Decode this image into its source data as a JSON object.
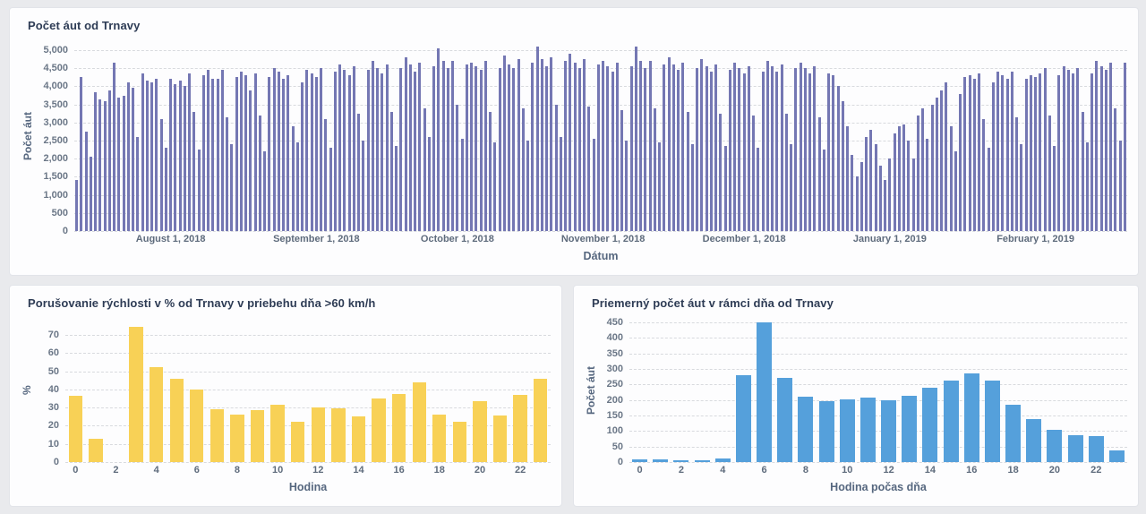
{
  "chart_data": [
    {
      "type": "bar",
      "title": "Počet áut od Trnavy",
      "xlabel": "Dátum",
      "ylabel": "Počet áut",
      "bar_color": "#7477b3",
      "bar_frac": 0.58,
      "grid": "dashed-horizontal",
      "legend": "none",
      "ylim": [
        0,
        5250
      ],
      "yticks": [
        0,
        500,
        1000,
        1500,
        2000,
        2500,
        3000,
        3500,
        4000,
        4500,
        5000
      ],
      "ytick_labels": [
        "0",
        "500",
        "1,000",
        "1,500",
        "2,000",
        "2,500",
        "3,000",
        "3,500",
        "4,000",
        "4,500",
        "5,000"
      ],
      "x_range_note": "daily values, 2018-07-12 to 2019-02-20",
      "xticks": [
        {
          "i": 20,
          "label": "August 1, 2018"
        },
        {
          "i": 51,
          "label": "September 1, 2018"
        },
        {
          "i": 81,
          "label": "October 1, 2018"
        },
        {
          "i": 112,
          "label": "November 1, 2018"
        },
        {
          "i": 142,
          "label": "December 1, 2018"
        },
        {
          "i": 173,
          "label": "January 1, 2019"
        },
        {
          "i": 204,
          "label": "February 1, 2019"
        }
      ],
      "values": [
        1400,
        4250,
        2750,
        2050,
        3850,
        3650,
        3600,
        3900,
        4650,
        3700,
        3750,
        4100,
        3950,
        2600,
        4350,
        4150,
        4100,
        4200,
        3100,
        2300,
        4200,
        4050,
        4150,
        4000,
        4350,
        3300,
        2250,
        4300,
        4450,
        4200,
        4200,
        4450,
        3150,
        2400,
        4250,
        4400,
        4300,
        3900,
        4350,
        3200,
        2200,
        4250,
        4500,
        4400,
        4200,
        4300,
        2900,
        2450,
        4100,
        4450,
        4350,
        4250,
        4500,
        3100,
        2300,
        4400,
        4600,
        4450,
        4300,
        4550,
        3250,
        2500,
        4450,
        4700,
        4500,
        4350,
        4600,
        3300,
        2350,
        4500,
        4800,
        4600,
        4400,
        4650,
        3400,
        2600,
        4550,
        5050,
        4700,
        4500,
        4700,
        3500,
        2550,
        4600,
        4650,
        4550,
        4450,
        4700,
        3300,
        2450,
        4500,
        4850,
        4600,
        4500,
        4750,
        3400,
        2500,
        4650,
        5100,
        4750,
        4550,
        4800,
        3500,
        2600,
        4700,
        4900,
        4650,
        4500,
        4750,
        3450,
        2550,
        4600,
        4700,
        4550,
        4400,
        4650,
        3350,
        2500,
        4550,
        5100,
        4700,
        4500,
        4700,
        3400,
        2450,
        4600,
        4800,
        4600,
        4450,
        4650,
        3300,
        2400,
        4500,
        4750,
        4550,
        4400,
        4600,
        3250,
        2350,
        4450,
        4650,
        4500,
        4350,
        4550,
        3200,
        2300,
        4400,
        4700,
        4550,
        4400,
        4600,
        3250,
        2400,
        4500,
        4650,
        4500,
        4350,
        4550,
        3150,
        2250,
        4350,
        4300,
        4000,
        3600,
        2900,
        2100,
        1500,
        1900,
        2600,
        2800,
        2400,
        1800,
        1400,
        2000,
        2700,
        2900,
        2950,
        2500,
        2000,
        3200,
        3400,
        2550,
        3500,
        3700,
        3900,
        4100,
        2900,
        2200,
        3800,
        4250,
        4300,
        4200,
        4350,
        3100,
        2300,
        4100,
        4400,
        4300,
        4200,
        4400,
        3150,
        2400,
        4200,
        4300,
        4250,
        4350,
        4500,
        3200,
        2350,
        4300,
        4550,
        4450,
        4350,
        4500,
        3300,
        2450,
        4350,
        4700,
        4550,
        4450,
        4650,
        3400,
        2500,
        4650
      ]
    },
    {
      "type": "bar",
      "title": "Porušovanie rýchlosti v % od Trnavy v priebehu dňa >60 km/h",
      "xlabel": "Hodina",
      "ylabel": "%",
      "bar_color": "#f8d156",
      "bar_frac": 0.68,
      "grid": "dashed-horizontal",
      "legend": "none",
      "ylim": [
        0,
        79
      ],
      "yticks": [
        0,
        10,
        20,
        30,
        40,
        50,
        60,
        70
      ],
      "ytick_labels": [
        "0",
        "10",
        "20",
        "30",
        "40",
        "50",
        "60",
        "70"
      ],
      "categories": [
        0,
        1,
        2,
        3,
        4,
        5,
        6,
        7,
        8,
        9,
        10,
        11,
        12,
        13,
        14,
        15,
        16,
        17,
        18,
        19,
        20,
        21,
        22,
        23
      ],
      "xticks": [
        {
          "i": 0,
          "label": "0"
        },
        {
          "i": 2,
          "label": "2"
        },
        {
          "i": 4,
          "label": "4"
        },
        {
          "i": 6,
          "label": "6"
        },
        {
          "i": 8,
          "label": "8"
        },
        {
          "i": 10,
          "label": "10"
        },
        {
          "i": 12,
          "label": "12"
        },
        {
          "i": 14,
          "label": "14"
        },
        {
          "i": 16,
          "label": "16"
        },
        {
          "i": 18,
          "label": "18"
        },
        {
          "i": 20,
          "label": "20"
        },
        {
          "i": 22,
          "label": "22"
        }
      ],
      "values": [
        36.5,
        13,
        0,
        74.5,
        52.5,
        46,
        40,
        29,
        26,
        28.5,
        31.5,
        22,
        30,
        29.5,
        25,
        35,
        37.5,
        44,
        26,
        22,
        33.5,
        25.5,
        37,
        46
      ]
    },
    {
      "type": "bar",
      "title": "Priemerný počet áut v rámci dňa od Trnavy",
      "xlabel": "Hodina počas dňa",
      "ylabel": "Počet áut",
      "bar_color": "#55a0db",
      "bar_frac": 0.74,
      "grid": "dashed-horizontal",
      "legend": "none",
      "ylim": [
        0,
        462
      ],
      "yticks": [
        0,
        50,
        100,
        150,
        200,
        250,
        300,
        350,
        400,
        450
      ],
      "ytick_labels": [
        "0",
        "50",
        "100",
        "150",
        "200",
        "250",
        "300",
        "350",
        "400",
        "450"
      ],
      "categories": [
        0,
        1,
        2,
        3,
        4,
        5,
        6,
        7,
        8,
        9,
        10,
        11,
        12,
        13,
        14,
        15,
        16,
        17,
        18,
        19,
        20,
        21,
        22,
        23
      ],
      "xticks": [
        {
          "i": 0,
          "label": "0"
        },
        {
          "i": 2,
          "label": "2"
        },
        {
          "i": 4,
          "label": "4"
        },
        {
          "i": 6,
          "label": "6"
        },
        {
          "i": 8,
          "label": "8"
        },
        {
          "i": 10,
          "label": "10"
        },
        {
          "i": 12,
          "label": "12"
        },
        {
          "i": 14,
          "label": "14"
        },
        {
          "i": 16,
          "label": "16"
        },
        {
          "i": 18,
          "label": "18"
        },
        {
          "i": 20,
          "label": "20"
        },
        {
          "i": 22,
          "label": "22"
        }
      ],
      "values": [
        10,
        10,
        7,
        7,
        12,
        280,
        450,
        270,
        212,
        196,
        201,
        207,
        200,
        215,
        240,
        262,
        285,
        262,
        185,
        140,
        103,
        88,
        85,
        38
      ]
    }
  ]
}
